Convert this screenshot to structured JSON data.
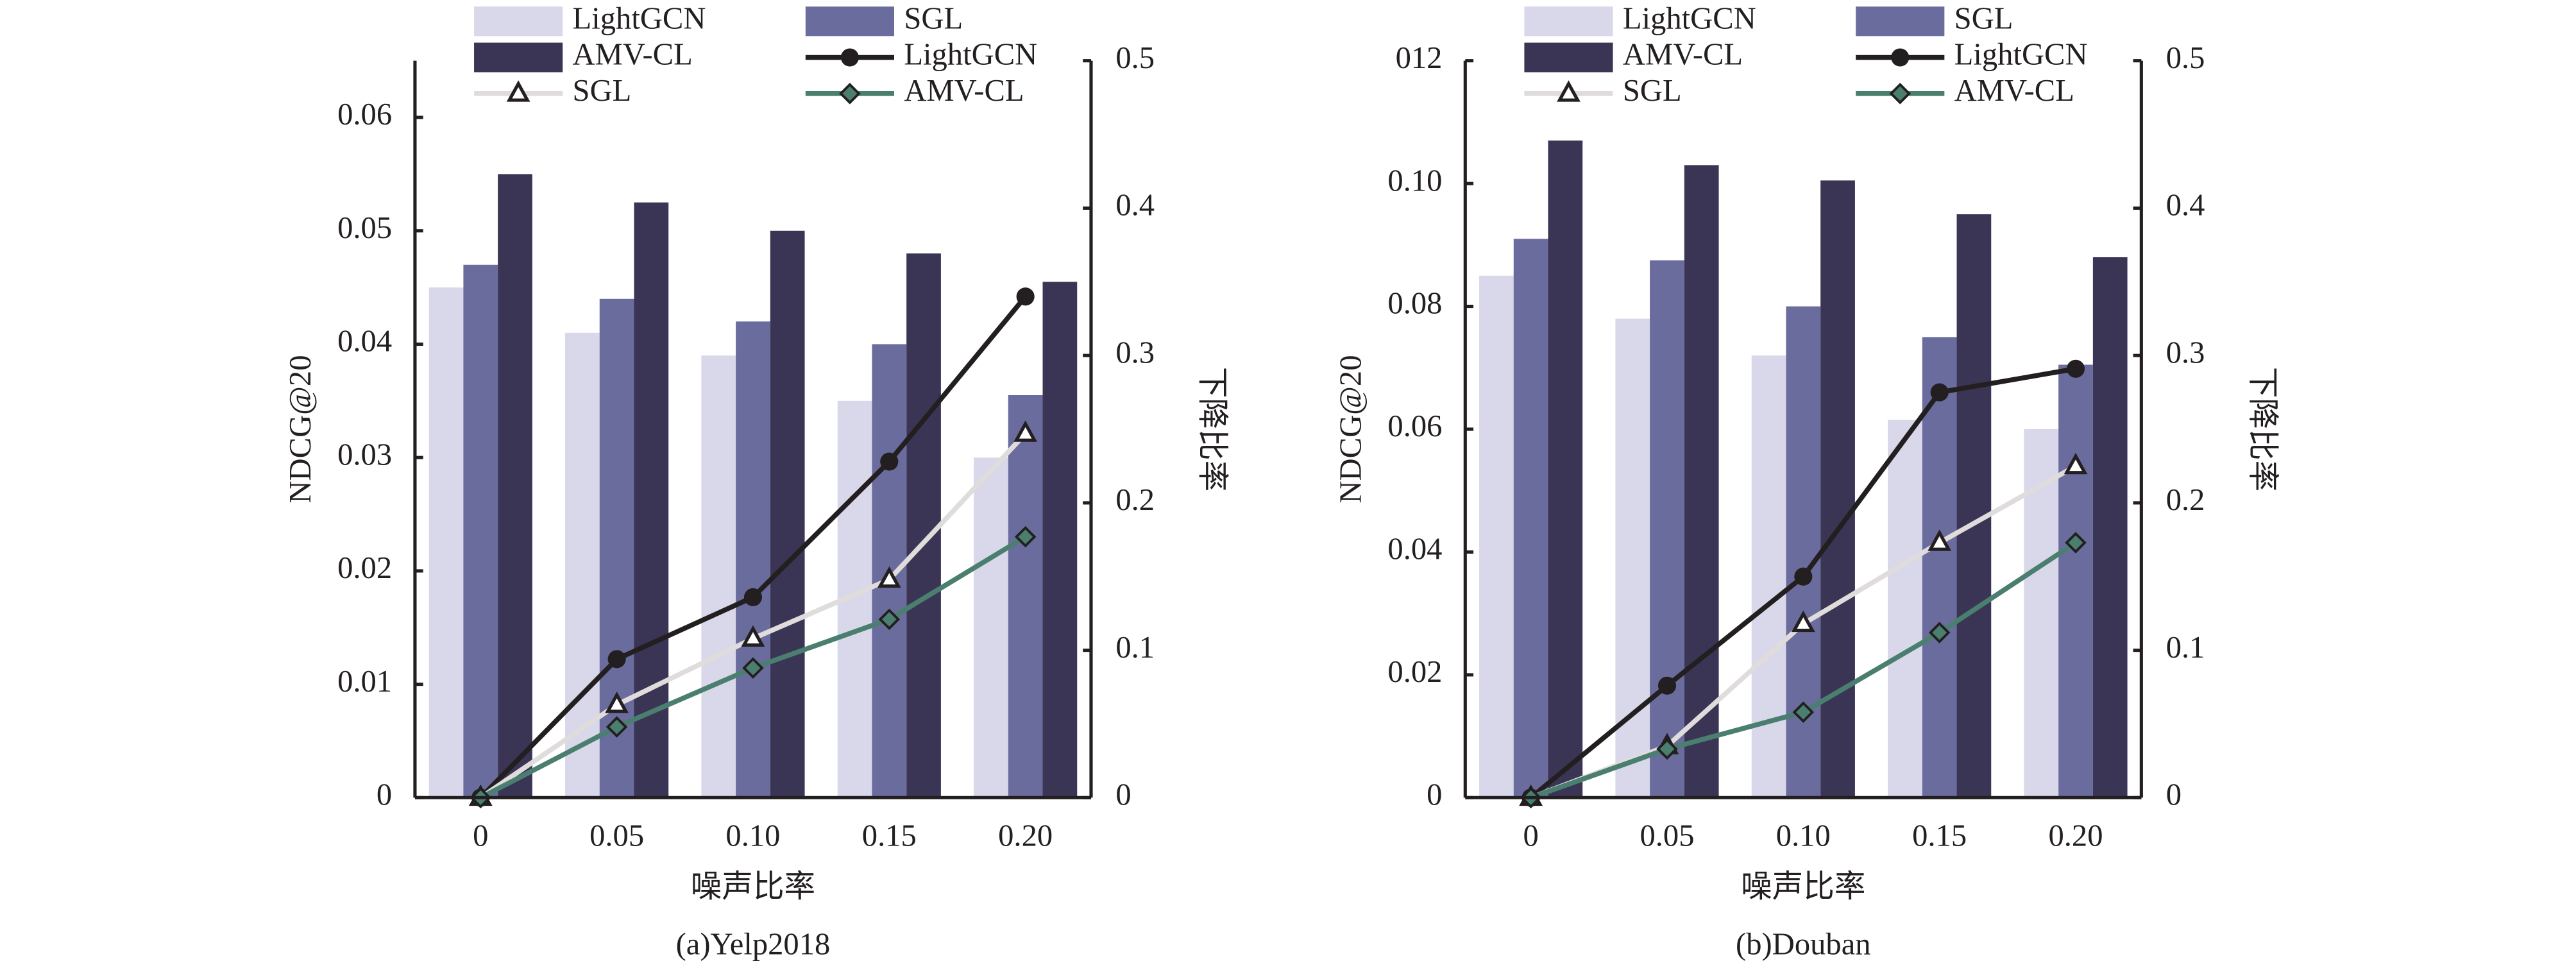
{
  "chart_data": [
    {
      "type": "bar",
      "caption": "(a)Yelp2018",
      "xlabel": "噪声比率",
      "ylabel": "NDCG@20",
      "y2label": "下降比率",
      "categories": [
        "0",
        "0.05",
        "0.10",
        "0.15",
        "0.20"
      ],
      "ylim": [
        0,
        0.065
      ],
      "yticks": [
        0,
        0.01,
        0.02,
        0.03,
        0.04,
        0.05,
        0.06
      ],
      "y2lim": [
        0,
        0.5
      ],
      "y2ticks": [
        0,
        0.1,
        0.2,
        0.3,
        0.4,
        0.5
      ],
      "series": [
        {
          "name": "LightGCN",
          "type": "bar",
          "color": "#d9d8ea",
          "values": [
            0.045,
            0.041,
            0.039,
            0.035,
            0.03
          ]
        },
        {
          "name": "SGL",
          "type": "bar",
          "color": "#6b6c9e",
          "values": [
            0.047,
            0.044,
            0.042,
            0.04,
            0.0355
          ]
        },
        {
          "name": "AMV-CL",
          "type": "bar",
          "color": "#3b3555",
          "values": [
            0.055,
            0.0525,
            0.05,
            0.048,
            0.0455
          ]
        },
        {
          "name": "LightGCN",
          "type": "line",
          "axis": "y2",
          "marker": "circle",
          "color": "#231f20",
          "values": [
            0,
            0.094,
            0.136,
            0.228,
            0.34
          ]
        },
        {
          "name": "SGL",
          "type": "line",
          "axis": "y2",
          "marker": "triangle",
          "color": "#e0dcdc",
          "values": [
            0,
            0.063,
            0.108,
            0.148,
            0.247
          ]
        },
        {
          "name": "AMV-CL",
          "type": "line",
          "axis": "y2",
          "marker": "diamond",
          "color": "#4a7f70",
          "values": [
            0,
            0.048,
            0.088,
            0.121,
            0.177
          ]
        }
      ]
    },
    {
      "type": "bar",
      "caption": "(b)Douban",
      "xlabel": "噪声比率",
      "ylabel": "NDCG@20",
      "y2label": "下降比率",
      "categories": [
        "0",
        "0.05",
        "0.10",
        "0.15",
        "0.20"
      ],
      "ylim": [
        0,
        0.12
      ],
      "yticks": [
        0,
        0.02,
        0.04,
        0.06,
        0.08,
        {
          "value": 0.1,
          "label": "0.10"
        },
        {
          "value": 0.12,
          "label": "012"
        }
      ],
      "y2lim": [
        0,
        0.5
      ],
      "y2ticks": [
        0,
        0.1,
        0.2,
        0.3,
        0.4,
        0.5
      ],
      "series": [
        {
          "name": "LightGCN",
          "type": "bar",
          "color": "#d9d8ea",
          "values": [
            0.085,
            0.078,
            0.072,
            0.0615,
            0.06
          ]
        },
        {
          "name": "SGL",
          "type": "bar",
          "color": "#6b6c9e",
          "values": [
            0.091,
            0.0875,
            0.08,
            0.075,
            0.0705
          ]
        },
        {
          "name": "AMV-CL",
          "type": "bar",
          "color": "#3b3555",
          "values": [
            0.107,
            0.103,
            0.1005,
            0.095,
            0.088
          ]
        },
        {
          "name": "LightGCN",
          "type": "line",
          "axis": "y2",
          "marker": "circle",
          "color": "#231f20",
          "values": [
            0,
            0.076,
            0.15,
            0.275,
            0.291
          ]
        },
        {
          "name": "SGL",
          "type": "line",
          "axis": "y2",
          "marker": "triangle",
          "color": "#e0dcdc",
          "values": [
            0,
            0.035,
            0.118,
            0.173,
            0.225
          ]
        },
        {
          "name": "AMV-CL",
          "type": "line",
          "axis": "y2",
          "marker": "diamond",
          "color": "#4a7f70",
          "values": [
            0,
            0.033,
            0.058,
            0.112,
            0.173
          ]
        }
      ]
    }
  ]
}
